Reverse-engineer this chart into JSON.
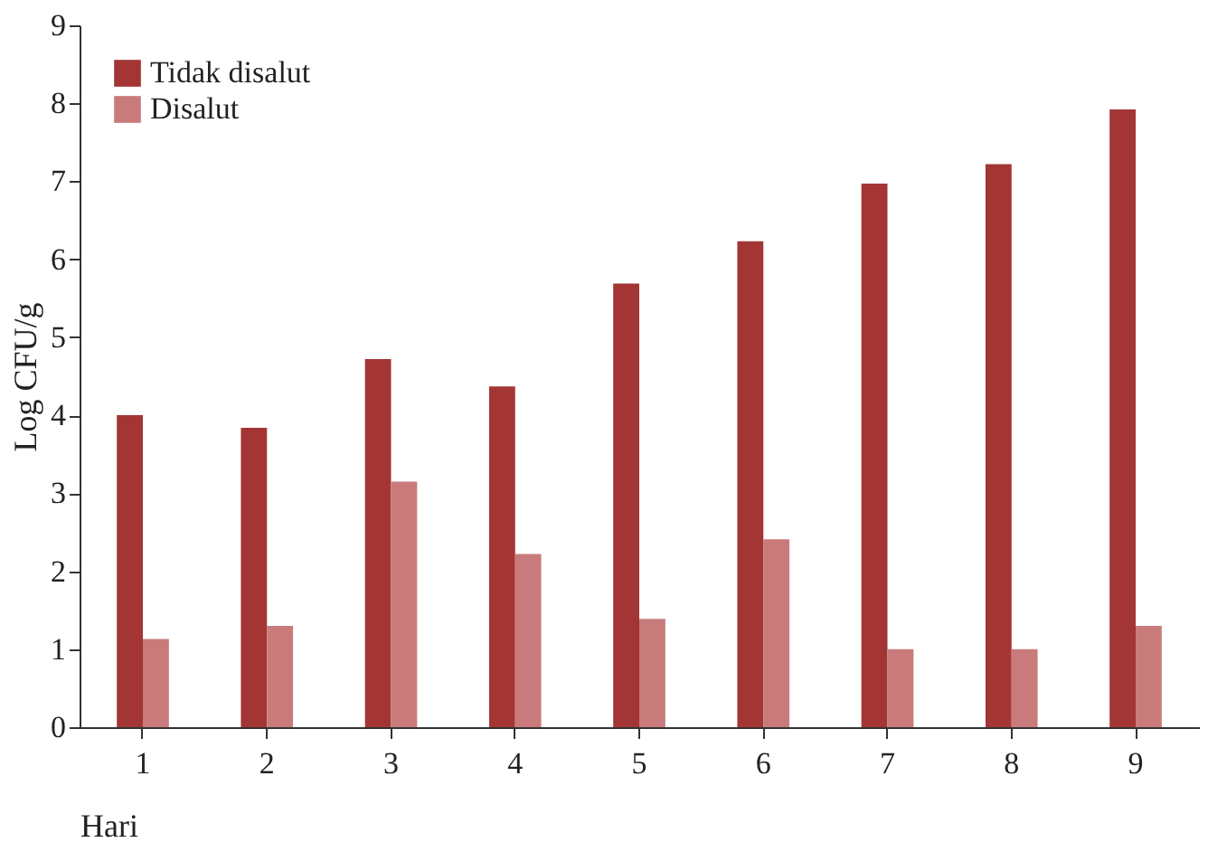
{
  "chart_data": {
    "type": "bar",
    "xlabel": "Hari",
    "ylabel": "Log CFU/g",
    "categories": [
      "1",
      "2",
      "3",
      "4",
      "5",
      "6",
      "7",
      "8",
      "9"
    ],
    "series": [
      {
        "name": "Tidak disalut",
        "color": "#a33634",
        "values": [
          4.0,
          3.84,
          4.72,
          4.37,
          5.69,
          6.23,
          6.97,
          7.22,
          7.92
        ]
      },
      {
        "name": "Disalut",
        "color": "#c97b7b",
        "values": [
          1.13,
          1.3,
          3.15,
          2.22,
          1.39,
          2.41,
          1.0,
          1.0,
          1.3
        ]
      }
    ],
    "ylim": [
      0,
      9
    ],
    "yticks": [
      0,
      1,
      2,
      3,
      4,
      5,
      6,
      7,
      8,
      9
    ],
    "grid": false,
    "legend": "top left"
  }
}
